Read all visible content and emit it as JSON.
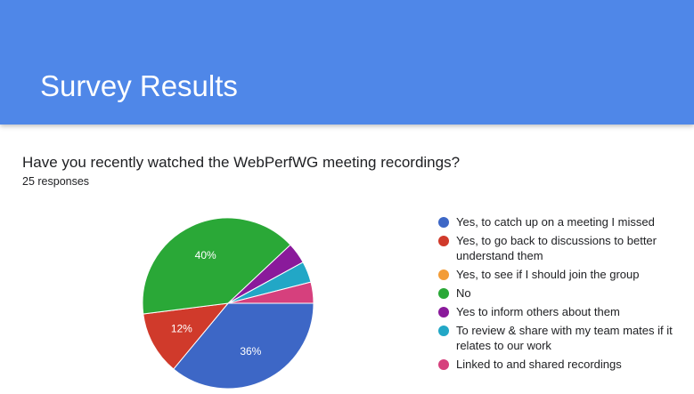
{
  "header": {
    "title": "Survey Results",
    "color": "#4f87e8"
  },
  "question": {
    "text": "Have you recently watched the WebPerfWG meeting recordings?",
    "responses": "25 responses"
  },
  "chart_data": {
    "type": "pie",
    "title": "",
    "slices": [
      {
        "label": "Yes, to catch up on a meeting I missed",
        "value": 36,
        "color": "#3d67c6",
        "data_label": "36%"
      },
      {
        "label": "Yes, to go back to discussions to better understand them",
        "value": 12,
        "color": "#d03a2b",
        "data_label": "12%"
      },
      {
        "label": "Yes, to see if I should join the group",
        "value": 0,
        "color": "#f39c37",
        "data_label": ""
      },
      {
        "label": "No",
        "value": 40,
        "color": "#2aa837",
        "data_label": "40%"
      },
      {
        "label": "Yes to inform others about them",
        "value": 4,
        "color": "#8a1a9b",
        "data_label": ""
      },
      {
        "label": "To review & share with my team mates if it relates to our work",
        "value": 4,
        "color": "#22a7c6",
        "data_label": ""
      },
      {
        "label": "Linked to and shared recordings",
        "value": 4,
        "color": "#d6407d",
        "data_label": ""
      }
    ],
    "legend_position": "right",
    "start_angle_deg": 90,
    "direction": "counterclockwise"
  }
}
